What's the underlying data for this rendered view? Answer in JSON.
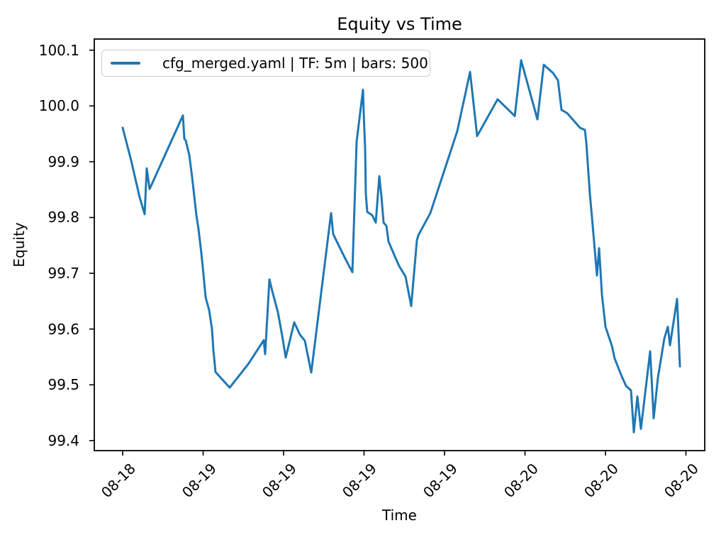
{
  "figure": {
    "title": "Equity vs Time",
    "xlabel": "Time",
    "ylabel": "Equity",
    "legend_label": "cfg_merged.yaml | TF: 5m | bars: 500"
  },
  "colors": {
    "line": "#1f77b4",
    "text": "#000000",
    "spine": "#000000",
    "legend_border": "#cccccc",
    "background": "#ffffff"
  },
  "chart_data": {
    "type": "line",
    "title": "Equity vs Time",
    "xlabel": "Time",
    "ylabel": "Equity",
    "grid": false,
    "legend_position": "upper left",
    "ylim": [
      99.382,
      100.12
    ],
    "y_ticks": [
      99.4,
      99.5,
      99.6,
      99.7,
      99.8,
      99.9,
      100.0,
      100.1
    ],
    "x_ticks": {
      "labels": [
        "08-18",
        "08-19",
        "08-19",
        "08-19",
        "08-19",
        "08-20",
        "08-20",
        "08-20"
      ],
      "fracs": [
        0.0465,
        0.1783,
        0.3101,
        0.4419,
        0.5737,
        0.7056,
        0.8374,
        0.9692
      ]
    },
    "series": [
      {
        "name": "cfg_merged.yaml | TF: 5m | bars: 500",
        "color": "#1f77b4",
        "points": [
          [
            0.0465,
            99.961
          ],
          [
            0.0604,
            99.902
          ],
          [
            0.0743,
            99.836
          ],
          [
            0.0825,
            99.806
          ],
          [
            0.0859,
            99.888
          ],
          [
            0.0906,
            99.851
          ],
          [
            0.1452,
            99.983
          ],
          [
            0.1475,
            99.941
          ],
          [
            0.1498,
            99.938
          ],
          [
            0.1556,
            99.912
          ],
          [
            0.1603,
            99.872
          ],
          [
            0.1638,
            99.838
          ],
          [
            0.1672,
            99.804
          ],
          [
            0.1707,
            99.779
          ],
          [
            0.1754,
            99.736
          ],
          [
            0.1789,
            99.698
          ],
          [
            0.1823,
            99.657
          ],
          [
            0.1881,
            99.634
          ],
          [
            0.1928,
            99.6
          ],
          [
            0.1951,
            99.562
          ],
          [
            0.1986,
            99.523
          ],
          [
            0.2218,
            99.495
          ],
          [
            0.252,
            99.537
          ],
          [
            0.2776,
            99.58
          ],
          [
            0.2799,
            99.555
          ],
          [
            0.2869,
            99.689
          ],
          [
            0.2915,
            99.668
          ],
          [
            0.3008,
            99.63
          ],
          [
            0.3078,
            99.588
          ],
          [
            0.3136,
            99.549
          ],
          [
            0.3275,
            99.612
          ],
          [
            0.3368,
            99.59
          ],
          [
            0.3449,
            99.579
          ],
          [
            0.3554,
            99.522
          ],
          [
            0.3879,
            99.808
          ],
          [
            0.3914,
            99.77
          ],
          [
            0.4111,
            99.726
          ],
          [
            0.4228,
            99.702
          ],
          [
            0.4297,
            99.936
          ],
          [
            0.4402,
            100.029
          ],
          [
            0.4413,
            99.987
          ],
          [
            0.4437,
            99.923
          ],
          [
            0.4448,
            99.842
          ],
          [
            0.4471,
            99.81
          ],
          [
            0.4553,
            99.804
          ],
          [
            0.4611,
            99.791
          ],
          [
            0.4669,
            99.874
          ],
          [
            0.4704,
            99.838
          ],
          [
            0.4739,
            99.791
          ],
          [
            0.4785,
            99.785
          ],
          [
            0.482,
            99.757
          ],
          [
            0.4925,
            99.73
          ],
          [
            0.4994,
            99.713
          ],
          [
            0.5099,
            99.694
          ],
          [
            0.5192,
            99.641
          ],
          [
            0.5285,
            99.759
          ],
          [
            0.5308,
            99.768
          ],
          [
            0.5505,
            99.808
          ],
          [
            0.5947,
            99.955
          ],
          [
            0.6156,
            100.061
          ],
          [
            0.6272,
            99.946
          ],
          [
            0.6608,
            100.012
          ],
          [
            0.6888,
            99.982
          ],
          [
            0.6992,
            100.082
          ],
          [
            0.7259,
            99.976
          ],
          [
            0.7364,
            100.074
          ],
          [
            0.7515,
            100.059
          ],
          [
            0.7596,
            100.046
          ],
          [
            0.7654,
            99.993
          ],
          [
            0.7747,
            99.987
          ],
          [
            0.7956,
            99.961
          ],
          [
            0.8037,
            99.957
          ],
          [
            0.806,
            99.934
          ],
          [
            0.8118,
            99.842
          ],
          [
            0.8153,
            99.8
          ],
          [
            0.8235,
            99.696
          ],
          [
            0.8269,
            99.745
          ],
          [
            0.8316,
            99.662
          ],
          [
            0.8374,
            99.604
          ],
          [
            0.8478,
            99.57
          ],
          [
            0.8525,
            99.547
          ],
          [
            0.8641,
            99.515
          ],
          [
            0.8711,
            99.498
          ],
          [
            0.8792,
            99.49
          ],
          [
            0.8839,
            99.415
          ],
          [
            0.8897,
            99.479
          ],
          [
            0.8955,
            99.421
          ],
          [
            0.9106,
            99.56
          ],
          [
            0.9164,
            99.44
          ],
          [
            0.9234,
            99.513
          ],
          [
            0.9338,
            99.583
          ],
          [
            0.9396,
            99.604
          ],
          [
            0.9431,
            99.571
          ],
          [
            0.9547,
            99.654
          ],
          [
            0.957,
            99.595
          ],
          [
            0.9593,
            99.533
          ]
        ]
      }
    ]
  }
}
